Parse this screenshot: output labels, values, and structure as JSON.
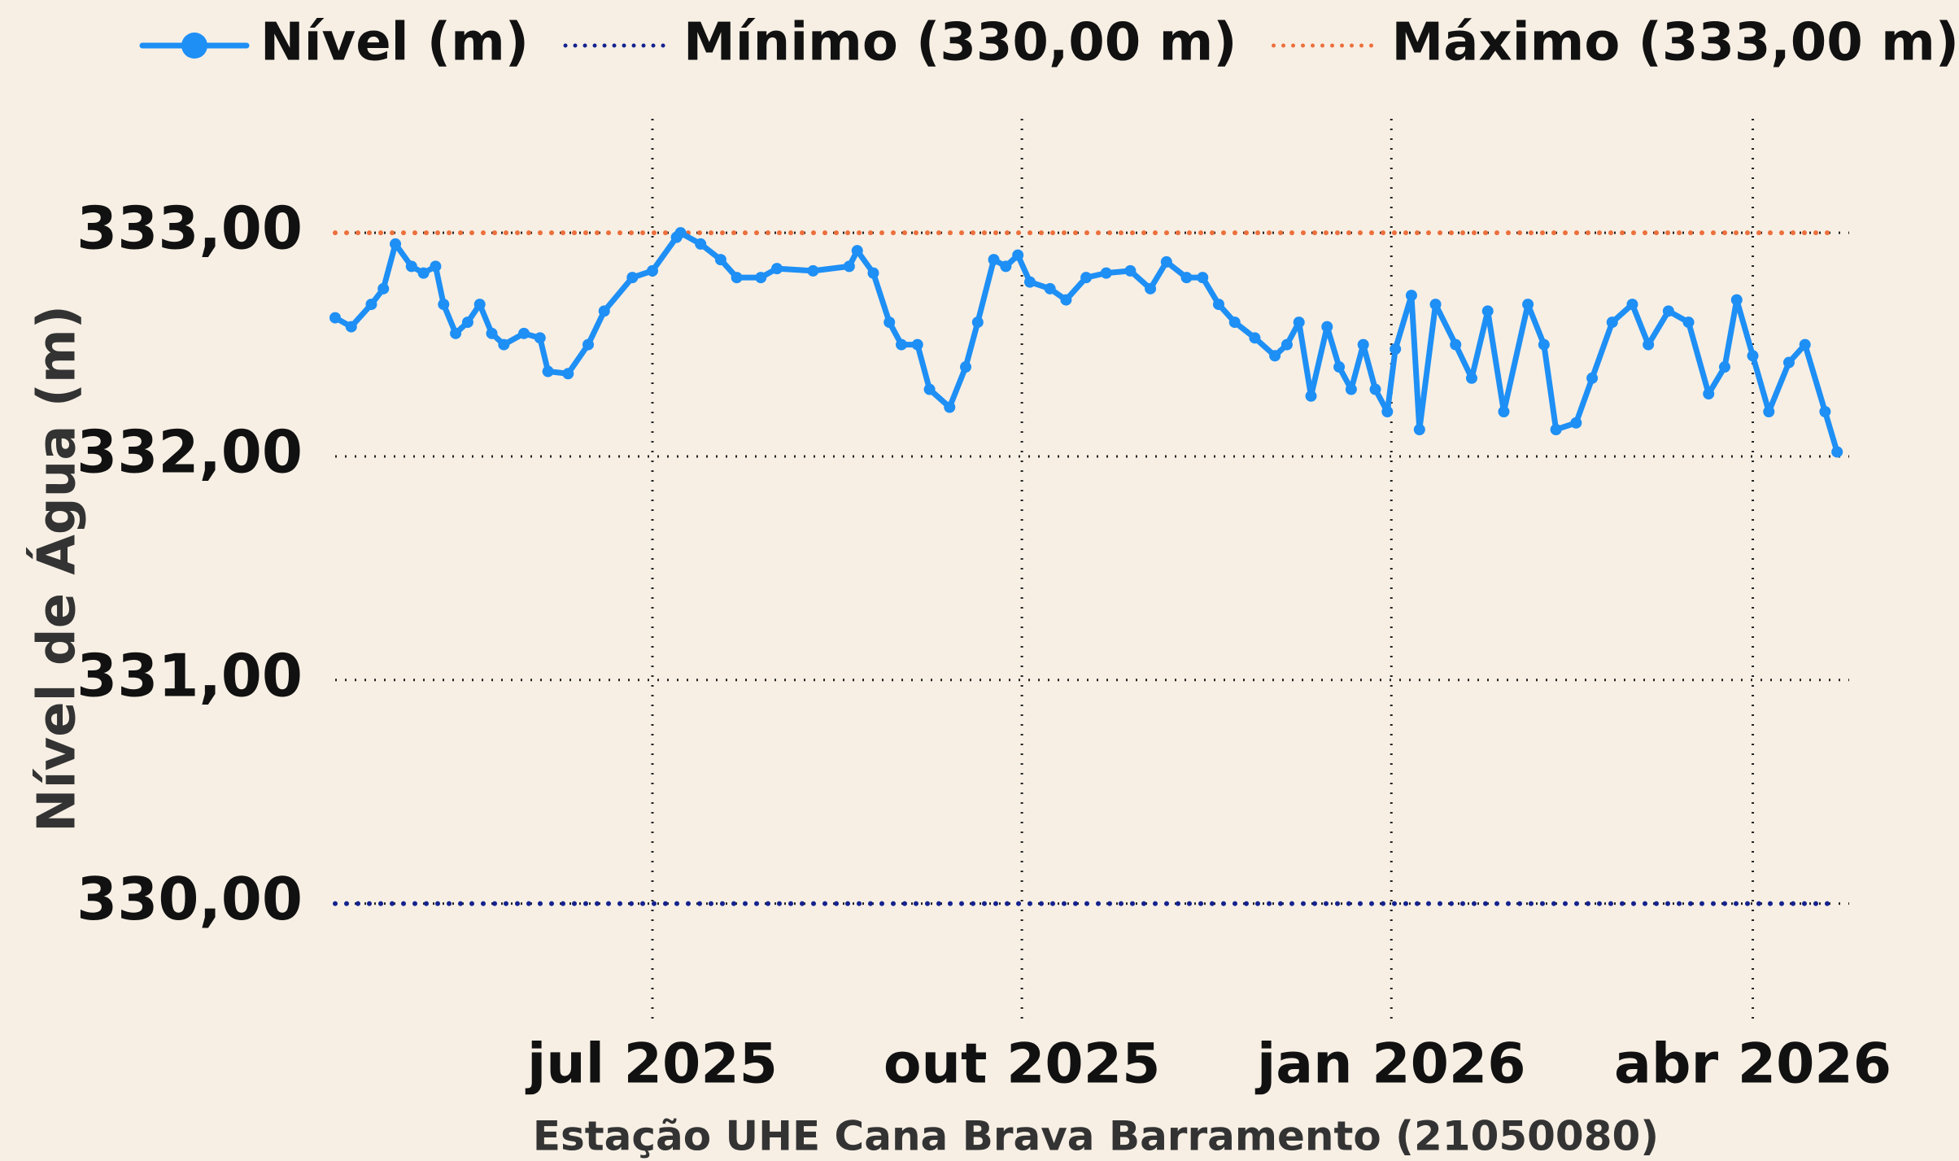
{
  "chart_data": {
    "type": "line",
    "y_label": "Nível de Água (m)",
    "x_label": "Estação UHE Cana Brava Barramento (21050080)",
    "xlim": [
      "2025-04-13",
      "2026-04-25"
    ],
    "xticks": [
      {
        "value": "2025-07-01",
        "label": "jul 2025"
      },
      {
        "value": "2025-10-01",
        "label": "out 2025"
      },
      {
        "value": "2026-01-01",
        "label": "jan 2026"
      },
      {
        "value": "2026-04-01",
        "label": "abr 2026"
      }
    ],
    "ylim": [
      329.46,
      333.51
    ],
    "yticks": [
      {
        "value": 330,
        "label": "330,00"
      },
      {
        "value": 331,
        "label": "331,00"
      },
      {
        "value": 332,
        "label": "332,00"
      },
      {
        "value": 333,
        "label": "333,00"
      }
    ],
    "grid": true,
    "legend": "top",
    "series": [
      {
        "name": "Nível (m)",
        "color": "#1e8ff5",
        "style": "solid",
        "marker": true,
        "x": [
          "2025-04-13",
          "2025-04-17",
          "2025-04-22",
          "2025-04-25",
          "2025-04-28",
          "2025-05-02",
          "2025-05-05",
          "2025-05-08",
          "2025-05-10",
          "2025-05-13",
          "2025-05-16",
          "2025-05-19",
          "2025-05-22",
          "2025-05-25",
          "2025-05-30",
          "2025-06-03",
          "2025-06-05",
          "2025-06-10",
          "2025-06-15",
          "2025-06-19",
          "2025-06-26",
          "2025-07-01",
          "2025-07-07",
          "2025-07-08",
          "2025-07-13",
          "2025-07-18",
          "2025-07-22",
          "2025-07-28",
          "2025-08-01",
          "2025-08-10",
          "2025-08-19",
          "2025-08-21",
          "2025-08-25",
          "2025-08-29",
          "2025-09-01",
          "2025-09-05",
          "2025-09-08",
          "2025-09-13",
          "2025-09-17",
          "2025-09-20",
          "2025-09-24",
          "2025-09-27",
          "2025-09-30",
          "2025-10-03",
          "2025-10-08",
          "2025-10-12",
          "2025-10-17",
          "2025-10-22",
          "2025-10-28",
          "2025-11-02",
          "2025-11-06",
          "2025-11-11",
          "2025-11-15",
          "2025-11-19",
          "2025-11-23",
          "2025-11-28",
          "2025-12-03",
          "2025-12-06",
          "2025-12-09",
          "2025-12-12",
          "2025-12-16",
          "2025-12-19",
          "2025-12-22",
          "2025-12-25",
          "2025-12-28",
          "2025-12-31",
          "2026-01-02",
          "2026-01-06",
          "2026-01-08",
          "2026-01-12",
          "2026-01-17",
          "2026-01-21",
          "2026-01-25",
          "2026-01-29",
          "2026-02-04",
          "2026-02-08",
          "2026-02-11",
          "2026-02-16",
          "2026-02-20",
          "2026-02-25",
          "2026-03-02",
          "2026-03-06",
          "2026-03-11",
          "2026-03-16",
          "2026-03-21",
          "2026-03-25",
          "2026-03-28",
          "2026-04-01",
          "2026-04-05",
          "2026-04-10",
          "2026-04-14",
          "2026-04-19",
          "2026-04-22"
        ],
        "values": [
          332.62,
          332.58,
          332.68,
          332.75,
          332.95,
          332.85,
          332.82,
          332.85,
          332.68,
          332.55,
          332.6,
          332.68,
          332.55,
          332.5,
          332.55,
          332.53,
          332.38,
          332.37,
          332.5,
          332.65,
          332.8,
          332.83,
          332.98,
          333.0,
          332.95,
          332.88,
          332.8,
          332.8,
          332.84,
          332.83,
          332.85,
          332.92,
          332.82,
          332.6,
          332.5,
          332.5,
          332.3,
          332.22,
          332.4,
          332.6,
          332.88,
          332.85,
          332.9,
          332.78,
          332.75,
          332.7,
          332.8,
          332.82,
          332.83,
          332.75,
          332.87,
          332.8,
          332.8,
          332.68,
          332.6,
          332.53,
          332.45,
          332.5,
          332.6,
          332.27,
          332.58,
          332.4,
          332.3,
          332.5,
          332.3,
          332.2,
          332.48,
          332.72,
          332.12,
          332.68,
          332.5,
          332.35,
          332.65,
          332.2,
          332.68,
          332.5,
          332.12,
          332.15,
          332.35,
          332.6,
          332.68,
          332.5,
          332.65,
          332.6,
          332.28,
          332.4,
          332.7,
          332.45,
          332.2,
          332.42,
          332.5,
          332.2,
          332.02
        ]
      },
      {
        "name": "Mínimo (330,00 m)",
        "color": "#14228f",
        "style": "dotted",
        "marker": false,
        "x": [
          "2025-04-13",
          "2026-04-22"
        ],
        "values": [
          330,
          330
        ]
      },
      {
        "name": "Máximo (333,00 m)",
        "color": "#ec6f3c",
        "style": "dotted",
        "marker": false,
        "x": [
          "2025-04-13",
          "2026-04-22"
        ],
        "values": [
          333,
          333
        ]
      }
    ]
  }
}
